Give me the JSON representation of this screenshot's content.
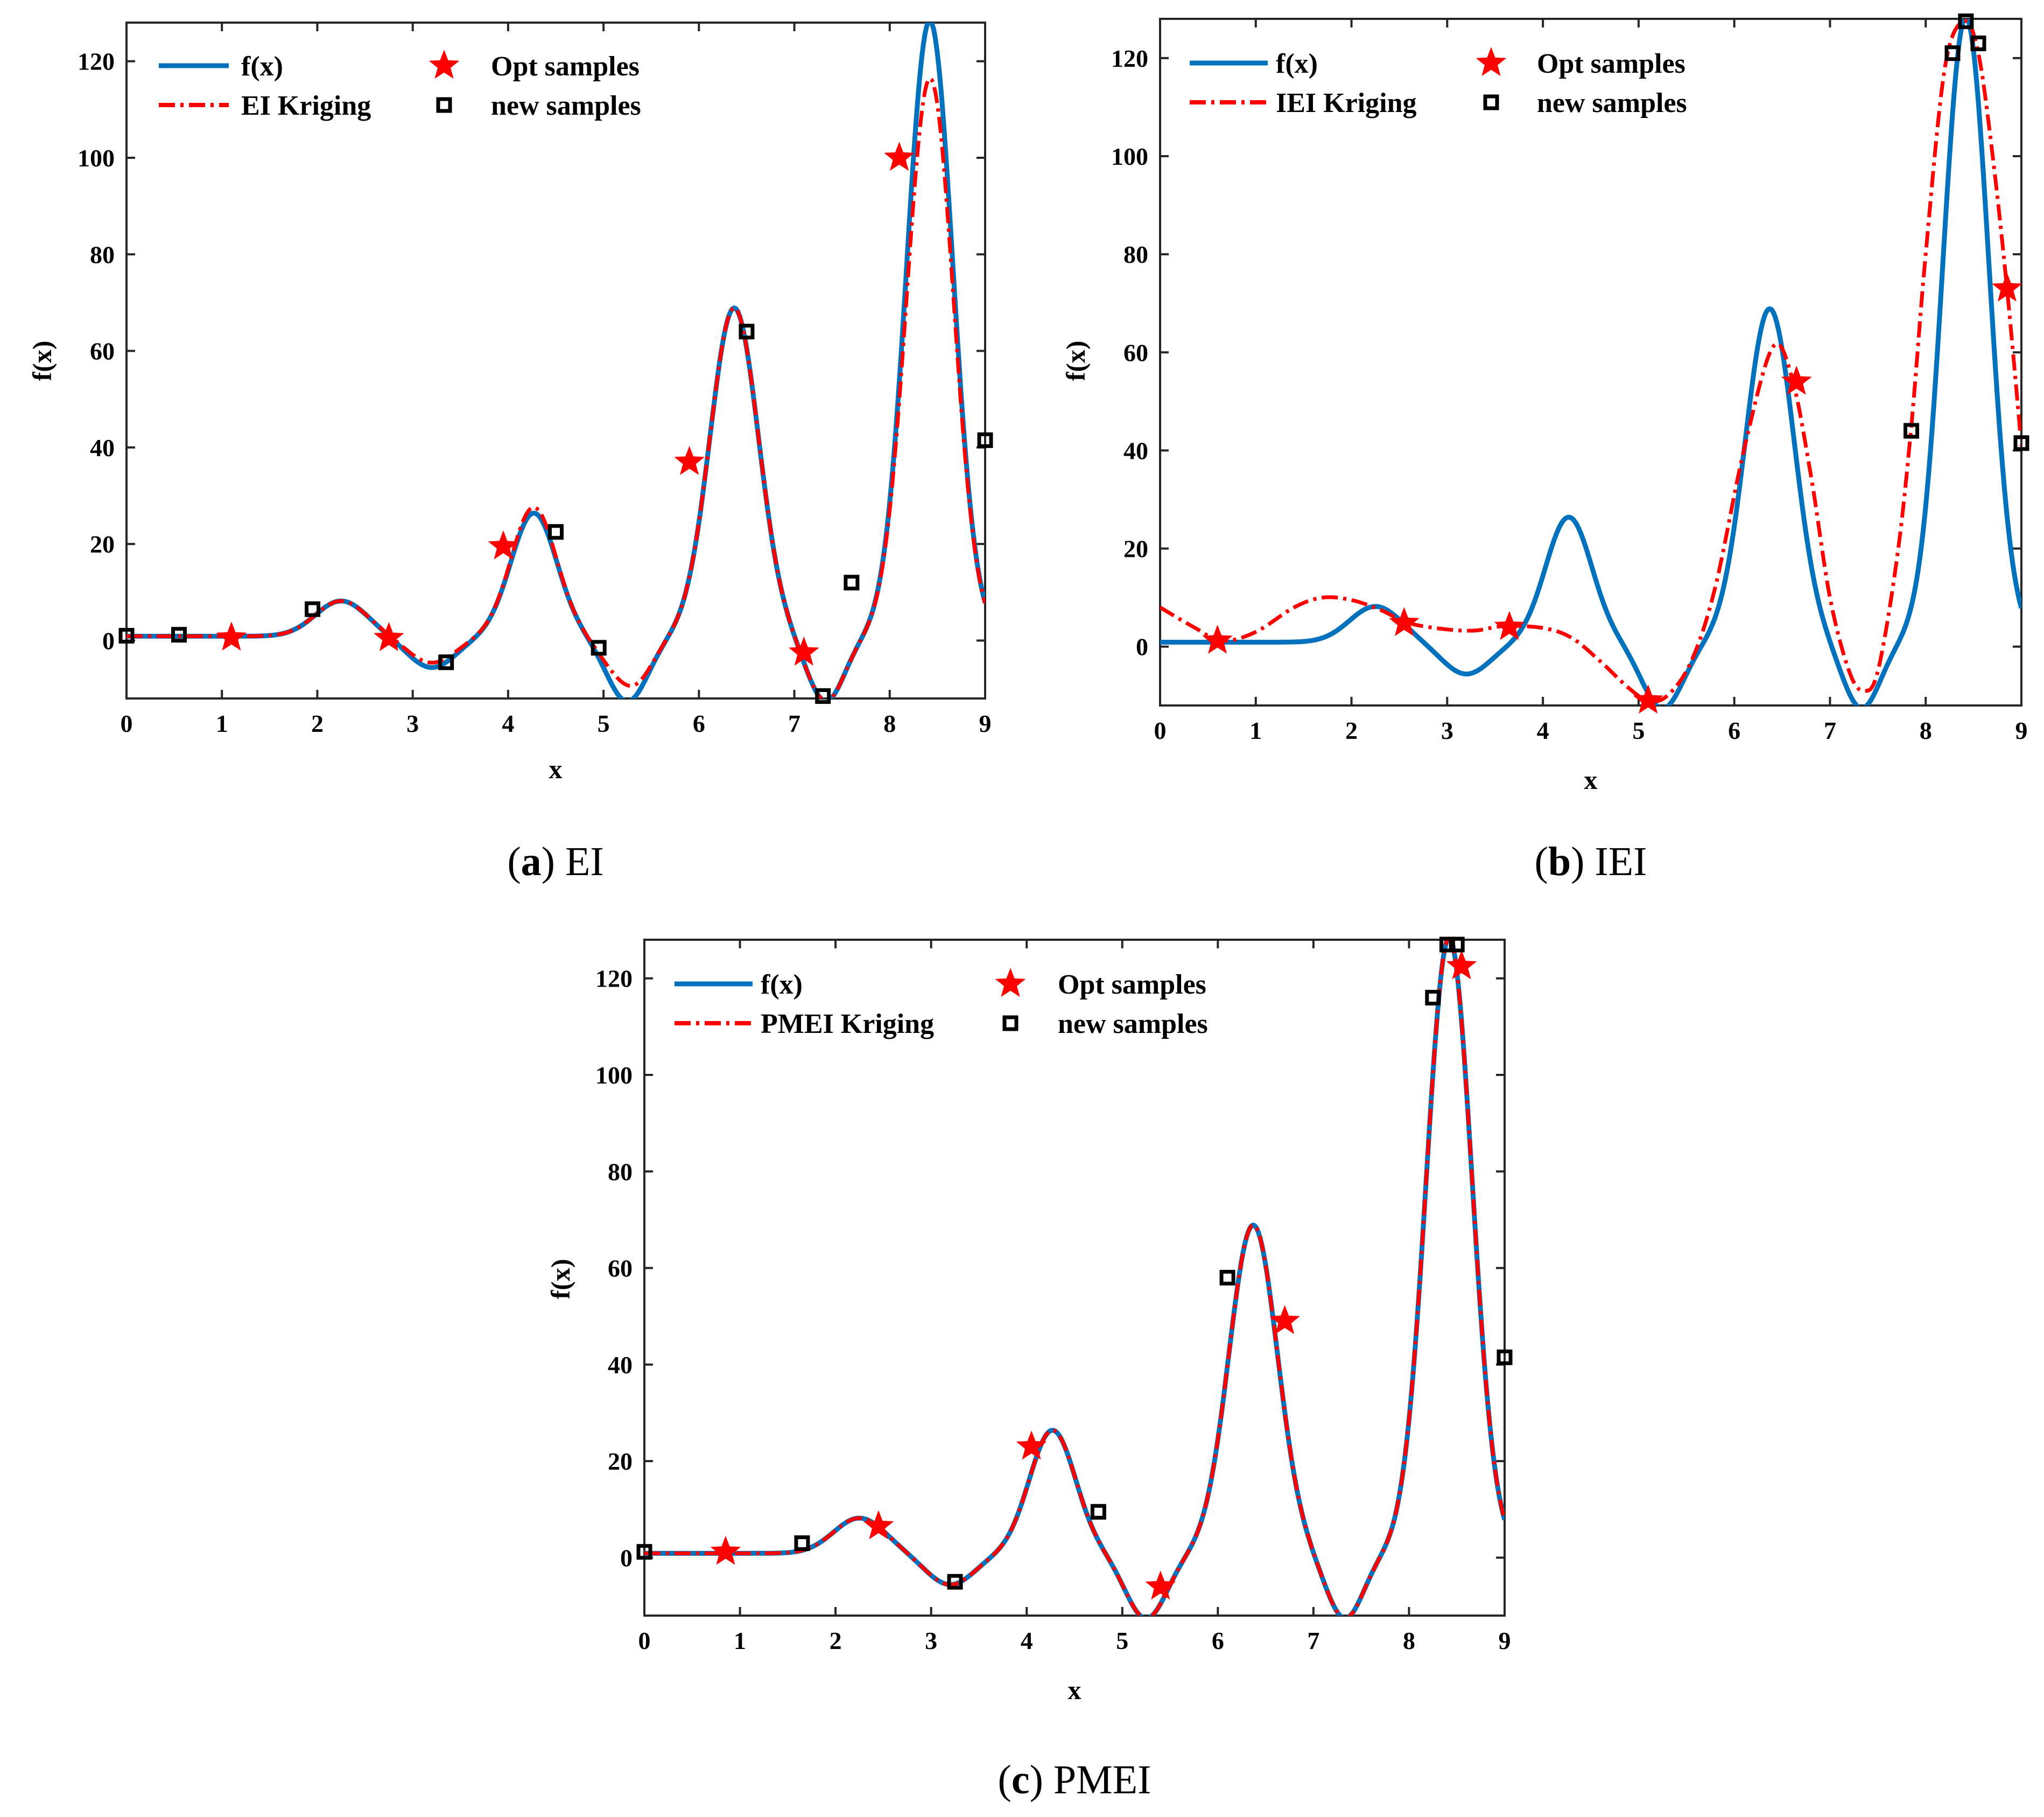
{
  "figure": {
    "colors": {
      "true_curve": "#0072BD",
      "kriging": "#FF0000",
      "opt_marker": "#FF0000",
      "new_marker": "#000000"
    }
  },
  "chart_data": [
    {
      "id": "a",
      "type": "line",
      "caption_letter": "a",
      "caption_text": "EI",
      "xlabel": "x",
      "ylabel": "f(x)",
      "xlim": [
        0,
        9
      ],
      "ylim": [
        -12,
        128
      ],
      "xticks": [
        0,
        1,
        2,
        3,
        4,
        5,
        6,
        7,
        8,
        9
      ],
      "yticks": [
        0,
        20,
        40,
        60,
        80,
        100,
        120
      ],
      "legend": {
        "true_label": "f(x)",
        "kriging_label": "EI Kriging",
        "opt_label": "Opt samples",
        "new_label": "new samples"
      },
      "kriging_dev": [
        [
          3.2,
          0.35,
          1.0
        ],
        [
          4.25,
          0.25,
          1.2
        ],
        [
          5.2,
          0.22,
          3.5
        ],
        [
          8.4,
          0.28,
          -12
        ]
      ],
      "opt_samples": [
        [
          1.1,
          0.6
        ],
        [
          2.75,
          0.5
        ],
        [
          3.95,
          19.5
        ],
        [
          5.9,
          37
        ],
        [
          7.1,
          -2.5
        ],
        [
          8.1,
          100
        ]
      ],
      "new_samples": [
        [
          0,
          1.0
        ],
        [
          0.55,
          1.2
        ],
        [
          1.95,
          6.5
        ],
        [
          3.35,
          -4.5
        ],
        [
          4.5,
          22.5
        ],
        [
          4.95,
          -1.5
        ],
        [
          6.5,
          64
        ],
        [
          7.3,
          -11.5
        ],
        [
          7.6,
          12
        ],
        [
          9,
          41.5
        ]
      ]
    },
    {
      "id": "b",
      "type": "line",
      "caption_letter": "b",
      "caption_text": "IEI",
      "xlabel": "x",
      "ylabel": "f(x)",
      "xlim": [
        0,
        9
      ],
      "ylim": [
        -12,
        128
      ],
      "xticks": [
        0,
        1,
        2,
        3,
        4,
        5,
        6,
        7,
        8,
        9
      ],
      "yticks": [
        0,
        20,
        40,
        60,
        80,
        100,
        120
      ],
      "legend": {
        "true_label": "f(x)",
        "kriging_label": "IEI Kriging",
        "opt_label": "Opt samples",
        "new_label": "new samples"
      },
      "kriging_curve": [
        [
          0,
          8
        ],
        [
          0.35,
          4
        ],
        [
          0.65,
          1.2
        ],
        [
          1.0,
          3
        ],
        [
          1.4,
          8
        ],
        [
          1.7,
          10
        ],
        [
          2.0,
          9.5
        ],
        [
          2.3,
          7.5
        ],
        [
          2.6,
          4.8
        ],
        [
          3.0,
          3.5
        ],
        [
          3.3,
          3.3
        ],
        [
          3.6,
          4.2
        ],
        [
          4.0,
          3.8
        ],
        [
          4.3,
          1.8
        ],
        [
          4.6,
          -3
        ],
        [
          4.9,
          -8.5
        ],
        [
          5.1,
          -11
        ],
        [
          5.3,
          -10
        ],
        [
          5.55,
          -3
        ],
        [
          5.8,
          12
        ],
        [
          6.1,
          40
        ],
        [
          6.4,
          61
        ],
        [
          6.6,
          55
        ],
        [
          6.8,
          35
        ],
        [
          7.0,
          10
        ],
        [
          7.2,
          -5
        ],
        [
          7.35,
          -9
        ],
        [
          7.5,
          -5
        ],
        [
          7.7,
          18
        ],
        [
          7.85,
          45
        ],
        [
          8.0,
          80
        ],
        [
          8.2,
          118
        ],
        [
          8.4,
          127.5
        ],
        [
          8.55,
          121
        ],
        [
          8.7,
          100
        ],
        [
          8.85,
          73
        ],
        [
          9.0,
          41
        ]
      ],
      "opt_samples": [
        [
          0.6,
          1.2
        ],
        [
          2.55,
          4.8
        ],
        [
          3.65,
          4.0
        ],
        [
          5.1,
          -11
        ],
        [
          6.65,
          54
        ],
        [
          8.85,
          73
        ]
      ],
      "new_samples": [
        [
          7.85,
          44
        ],
        [
          8.28,
          121
        ],
        [
          8.42,
          127.5
        ],
        [
          8.55,
          123
        ],
        [
          9,
          41.5
        ]
      ]
    },
    {
      "id": "c",
      "type": "line",
      "caption_letter": "c",
      "caption_text": "PMEI",
      "xlabel": "x",
      "ylabel": "f(x)",
      "xlim": [
        0,
        9
      ],
      "ylim": [
        -12,
        128
      ],
      "xticks": [
        0,
        1,
        2,
        3,
        4,
        5,
        6,
        7,
        8,
        9
      ],
      "yticks": [
        0,
        20,
        40,
        60,
        80,
        100,
        120
      ],
      "legend": {
        "true_label": "f(x)",
        "kriging_label": "PMEI Kriging",
        "opt_label": "Opt samples",
        "new_label": "new samples"
      },
      "kriging_dev": [],
      "opt_samples": [
        [
          0.85,
          1.2
        ],
        [
          2.45,
          6.5
        ],
        [
          4.05,
          23
        ],
        [
          5.4,
          -6
        ],
        [
          6.7,
          49
        ],
        [
          8.55,
          122.5
        ]
      ],
      "new_samples": [
        [
          0,
          1.2
        ],
        [
          1.65,
          3
        ],
        [
          3.25,
          -5
        ],
        [
          4.75,
          9.5
        ],
        [
          6.1,
          58
        ],
        [
          8.25,
          116
        ],
        [
          8.4,
          127
        ],
        [
          8.5,
          127
        ],
        [
          9,
          41.5
        ]
      ]
    }
  ]
}
